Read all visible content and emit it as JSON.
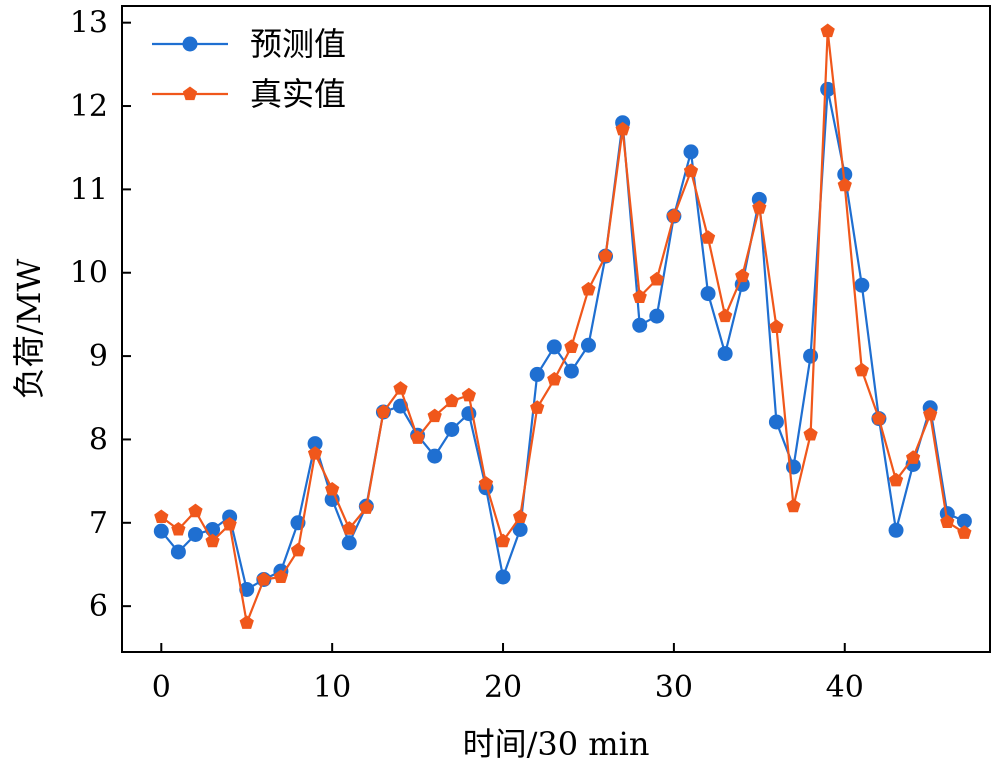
{
  "chart_data": {
    "type": "line",
    "title": "",
    "xlabel": "时间/30 min",
    "ylabel": "负荷/MW",
    "xlim": [
      -2.3,
      48.5
    ],
    "ylim": [
      5.45,
      13.2
    ],
    "xticks": [
      0,
      10,
      20,
      30,
      40
    ],
    "yticks": [
      6,
      7,
      8,
      9,
      10,
      11,
      12,
      13
    ],
    "grid": false,
    "legend_position": "top-left",
    "x": [
      0,
      1,
      2,
      3,
      4,
      5,
      6,
      7,
      8,
      9,
      10,
      11,
      12,
      13,
      14,
      15,
      16,
      17,
      18,
      19,
      20,
      21,
      22,
      23,
      24,
      25,
      26,
      27,
      28,
      29,
      30,
      31,
      32,
      33,
      34,
      35,
      36,
      37,
      38,
      39,
      40,
      41,
      42,
      43,
      44,
      45,
      46,
      47
    ],
    "series": [
      {
        "name": "预测值",
        "color": "#1f6fd1",
        "marker": "circle",
        "values": [
          6.9,
          6.65,
          6.86,
          6.92,
          7.07,
          6.2,
          6.32,
          6.42,
          7.0,
          7.95,
          7.28,
          6.76,
          7.2,
          8.33,
          8.4,
          8.05,
          7.8,
          8.12,
          8.31,
          7.42,
          6.35,
          6.92,
          8.78,
          9.11,
          8.82,
          9.13,
          10.2,
          11.8,
          9.37,
          9.48,
          10.68,
          11.45,
          9.75,
          9.03,
          9.86,
          10.88,
          8.21,
          7.67,
          9.0,
          12.2,
          11.18,
          9.85,
          8.25,
          6.91,
          7.7,
          8.38,
          7.11,
          7.02
        ]
      },
      {
        "name": "真实值",
        "color": "#f0571b",
        "marker": "pentagon",
        "values": [
          7.07,
          6.92,
          7.14,
          6.78,
          6.98,
          5.8,
          6.32,
          6.35,
          6.67,
          7.83,
          7.4,
          6.93,
          7.18,
          8.33,
          8.61,
          8.02,
          8.28,
          8.46,
          8.53,
          7.47,
          6.78,
          7.07,
          8.38,
          8.72,
          9.11,
          9.8,
          10.2,
          11.72,
          9.71,
          9.92,
          10.68,
          11.22,
          10.42,
          9.48,
          9.96,
          10.78,
          9.35,
          7.2,
          8.06,
          12.9,
          11.05,
          8.83,
          8.25,
          7.51,
          7.78,
          8.3,
          7.01,
          6.88
        ]
      }
    ]
  }
}
